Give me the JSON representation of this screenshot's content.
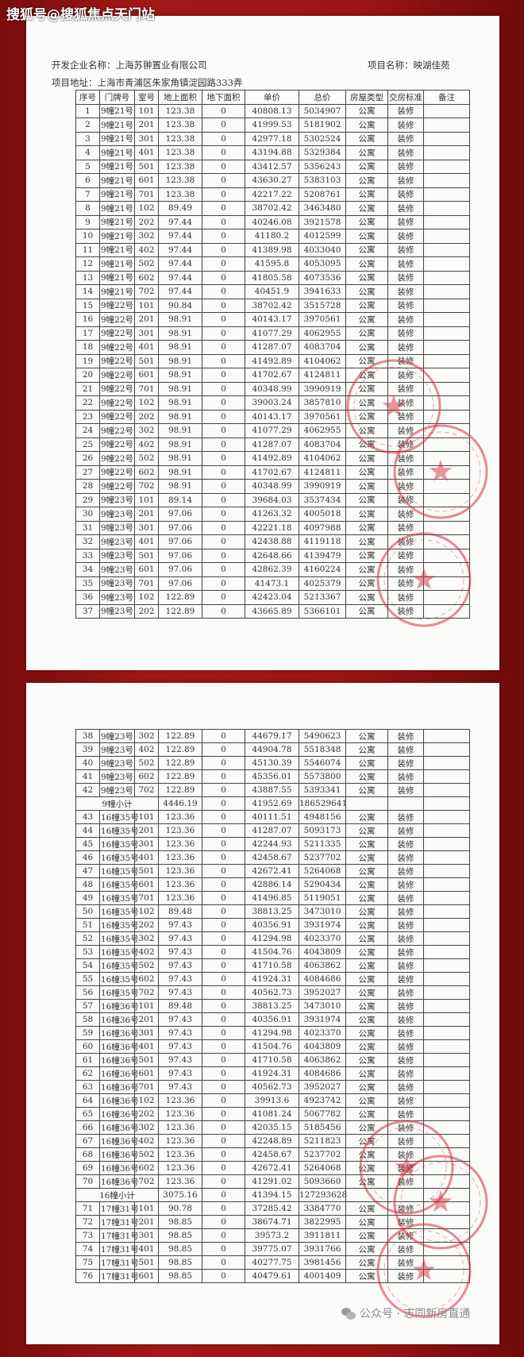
{
  "watermark_top": "搜狐号@搜狐焦点天门站",
  "watermark_bottom": "公众号 · 志同新房直通",
  "header": {
    "developer_label": "开发企业名称：",
    "developer": "上海苏翀置业有限公司",
    "project_label": "项目名称：",
    "project": "映湖佳苑",
    "address_label": "项目地址：",
    "address": "上海市青浦区朱家角镇淀园路333弄"
  },
  "columns": [
    "序号",
    "门牌号",
    "室号",
    "地上面积",
    "地下面积",
    "单价",
    "总价",
    "房屋类型",
    "交房标准",
    "备注"
  ],
  "stamp_color": "#d2303c",
  "page1_rows": [
    [
      "1",
      "9幢21号",
      "101",
      "123.38",
      "0",
      "40808.13",
      "5034907",
      "公寓",
      "装修",
      ""
    ],
    [
      "2",
      "9幢21号",
      "201",
      "123.38",
      "0",
      "41999.53",
      "5181902",
      "公寓",
      "装修",
      ""
    ],
    [
      "3",
      "9幢21号",
      "301",
      "123.38",
      "0",
      "42977.18",
      "5302524",
      "公寓",
      "装修",
      ""
    ],
    [
      "4",
      "9幢21号",
      "401",
      "123.38",
      "0",
      "43194.88",
      "5329384",
      "公寓",
      "装修",
      ""
    ],
    [
      "5",
      "9幢21号",
      "501",
      "123.38",
      "0",
      "43412.57",
      "5356243",
      "公寓",
      "装修",
      ""
    ],
    [
      "6",
      "9幢21号",
      "601",
      "123.38",
      "0",
      "43630.27",
      "5383103",
      "公寓",
      "装修",
      ""
    ],
    [
      "7",
      "9幢21号",
      "701",
      "123.38",
      "0",
      "42217.22",
      "5208761",
      "公寓",
      "装修",
      ""
    ],
    [
      "8",
      "9幢21号",
      "102",
      "89.49",
      "0",
      "38702.42",
      "3463480",
      "公寓",
      "装修",
      ""
    ],
    [
      "9",
      "9幢21号",
      "202",
      "97.44",
      "0",
      "40246.08",
      "3921578",
      "公寓",
      "装修",
      ""
    ],
    [
      "10",
      "9幢21号",
      "302",
      "97.44",
      "0",
      "41180.2",
      "4012599",
      "公寓",
      "装修",
      ""
    ],
    [
      "11",
      "9幢21号",
      "402",
      "97.44",
      "0",
      "41389.98",
      "4033040",
      "公寓",
      "装修",
      ""
    ],
    [
      "12",
      "9幢21号",
      "502",
      "97.44",
      "0",
      "41595.8",
      "4053095",
      "公寓",
      "装修",
      ""
    ],
    [
      "13",
      "9幢21号",
      "602",
      "97.44",
      "0",
      "41805.58",
      "4073536",
      "公寓",
      "装修",
      ""
    ],
    [
      "14",
      "9幢21号",
      "702",
      "97.44",
      "0",
      "40451.9",
      "3941633",
      "公寓",
      "装修",
      ""
    ],
    [
      "15",
      "9幢22号",
      "101",
      "90.84",
      "0",
      "38702.42",
      "3515728",
      "公寓",
      "装修",
      ""
    ],
    [
      "16",
      "9幢22号",
      "201",
      "98.91",
      "0",
      "40143.17",
      "3970561",
      "公寓",
      "装修",
      ""
    ],
    [
      "17",
      "9幢22号",
      "301",
      "98.91",
      "0",
      "41077.29",
      "4062955",
      "公寓",
      "装修",
      ""
    ],
    [
      "18",
      "9幢22号",
      "401",
      "98.91",
      "0",
      "41287.07",
      "4083704",
      "公寓",
      "装修",
      ""
    ],
    [
      "19",
      "9幢22号",
      "501",
      "98.91",
      "0",
      "41492.89",
      "4104062",
      "公寓",
      "装修",
      ""
    ],
    [
      "20",
      "9幢22号",
      "601",
      "98.91",
      "0",
      "41702.67",
      "4124811",
      "公寓",
      "装修",
      ""
    ],
    [
      "21",
      "9幢22号",
      "701",
      "98.91",
      "0",
      "40348.99",
      "3990919",
      "公寓",
      "装修",
      ""
    ],
    [
      "22",
      "9幢22号",
      "102",
      "98.91",
      "0",
      "39003.24",
      "3857810",
      "公寓",
      "装修",
      ""
    ],
    [
      "23",
      "9幢22号",
      "202",
      "98.91",
      "0",
      "40143.17",
      "3970561",
      "公寓",
      "装修",
      ""
    ],
    [
      "24",
      "9幢22号",
      "302",
      "98.91",
      "0",
      "41077.29",
      "4062955",
      "公寓",
      "装修",
      ""
    ],
    [
      "25",
      "9幢22号",
      "402",
      "98.91",
      "0",
      "41287.07",
      "4083704",
      "公寓",
      "装修",
      ""
    ],
    [
      "26",
      "9幢22号",
      "502",
      "98.91",
      "0",
      "41492.89",
      "4104062",
      "公寓",
      "装修",
      ""
    ],
    [
      "27",
      "9幢22号",
      "602",
      "98.91",
      "0",
      "41702.67",
      "4124811",
      "公寓",
      "装修",
      ""
    ],
    [
      "28",
      "9幢22号",
      "702",
      "98.91",
      "0",
      "40348.99",
      "3990919",
      "公寓",
      "装修",
      ""
    ],
    [
      "29",
      "9幢23号",
      "101",
      "89.14",
      "0",
      "39684.03",
      "3537434",
      "公寓",
      "装修",
      ""
    ],
    [
      "30",
      "9幢23号",
      "201",
      "97.06",
      "0",
      "41263.32",
      "4005018",
      "公寓",
      "装修",
      ""
    ],
    [
      "31",
      "9幢23号",
      "301",
      "97.06",
      "0",
      "42221.18",
      "4097988",
      "公寓",
      "装修",
      ""
    ],
    [
      "32",
      "9幢23号",
      "401",
      "97.06",
      "0",
      "42438.88",
      "4119118",
      "公寓",
      "装修",
      ""
    ],
    [
      "33",
      "9幢23号",
      "501",
      "97.06",
      "0",
      "42648.66",
      "4139479",
      "公寓",
      "装修",
      ""
    ],
    [
      "34",
      "9幢23号",
      "601",
      "97.06",
      "0",
      "42862.39",
      "4160224",
      "公寓",
      "装修",
      ""
    ],
    [
      "35",
      "9幢23号",
      "701",
      "97.06",
      "0",
      "41473.1",
      "4025379",
      "公寓",
      "装修",
      ""
    ],
    [
      "36",
      "9幢23号",
      "102",
      "122.89",
      "0",
      "42423.04",
      "5213367",
      "公寓",
      "装修",
      ""
    ],
    [
      "37",
      "9幢23号",
      "202",
      "122.89",
      "0",
      "43665.89",
      "5366101",
      "公寓",
      "装修",
      ""
    ]
  ],
  "page2_rows": [
    [
      "38",
      "9幢23号",
      "302",
      "122.89",
      "0",
      "44679.17",
      "5490623",
      "公寓",
      "装修",
      ""
    ],
    [
      "39",
      "9幢23号",
      "402",
      "122.89",
      "0",
      "44904.78",
      "5518348",
      "公寓",
      "装修",
      ""
    ],
    [
      "40",
      "9幢23号",
      "502",
      "122.89",
      "0",
      "45130.39",
      "5546074",
      "公寓",
      "装修",
      ""
    ],
    [
      "41",
      "9幢23号",
      "602",
      "122.89",
      "0",
      "45356.01",
      "5573800",
      "公寓",
      "装修",
      ""
    ],
    [
      "42",
      "9幢23号",
      "702",
      "122.89",
      "0",
      "43887.55",
      "5393341",
      "公寓",
      "装修",
      ""
    ],
    [
      "9幢小计",
      "4446.19",
      "0",
      "41952.69",
      "186529641"
    ],
    [
      "43",
      "16幢35号",
      "101",
      "123.36",
      "0",
      "40111.51",
      "4948156",
      "公寓",
      "装修",
      ""
    ],
    [
      "44",
      "16幢35号",
      "201",
      "123.36",
      "0",
      "41287.07",
      "5093173",
      "公寓",
      "装修",
      ""
    ],
    [
      "45",
      "16幢35号",
      "301",
      "123.36",
      "0",
      "42244.93",
      "5211335",
      "公寓",
      "装修",
      ""
    ],
    [
      "46",
      "16幢35号",
      "401",
      "123.36",
      "0",
      "42458.67",
      "5237702",
      "公寓",
      "装修",
      ""
    ],
    [
      "47",
      "16幢35号",
      "501",
      "123.36",
      "0",
      "42672.41",
      "5264068",
      "公寓",
      "装修",
      ""
    ],
    [
      "48",
      "16幢35号",
      "601",
      "123.36",
      "0",
      "42886.14",
      "5290434",
      "公寓",
      "装修",
      ""
    ],
    [
      "49",
      "16幢35号",
      "701",
      "123.36",
      "0",
      "41496.85",
      "5119051",
      "公寓",
      "装修",
      ""
    ],
    [
      "50",
      "16幢35号",
      "102",
      "89.48",
      "0",
      "38813.25",
      "3473010",
      "公寓",
      "装修",
      ""
    ],
    [
      "51",
      "16幢35号",
      "202",
      "97.43",
      "0",
      "40356.91",
      "3931974",
      "公寓",
      "装修",
      ""
    ],
    [
      "52",
      "16幢35号",
      "302",
      "97.43",
      "0",
      "41294.98",
      "4023370",
      "公寓",
      "装修",
      ""
    ],
    [
      "53",
      "16幢35号",
      "402",
      "97.43",
      "0",
      "41504.76",
      "4043809",
      "公寓",
      "装修",
      ""
    ],
    [
      "54",
      "16幢35号",
      "502",
      "97.43",
      "0",
      "41710.58",
      "4063862",
      "公寓",
      "装修",
      ""
    ],
    [
      "55",
      "16幢35号",
      "602",
      "97.43",
      "0",
      "41924.31",
      "4084686",
      "公寓",
      "装修",
      ""
    ],
    [
      "56",
      "16幢35号",
      "702",
      "97.43",
      "0",
      "40562.73",
      "3952027",
      "公寓",
      "装修",
      ""
    ],
    [
      "57",
      "16幢36号",
      "101",
      "89.48",
      "0",
      "38813.25",
      "3473010",
      "公寓",
      "装修",
      ""
    ],
    [
      "58",
      "16幢36号",
      "201",
      "97.43",
      "0",
      "40356.91",
      "3931974",
      "公寓",
      "装修",
      ""
    ],
    [
      "59",
      "16幢36号",
      "301",
      "97.43",
      "0",
      "41294.98",
      "4023370",
      "公寓",
      "装修",
      ""
    ],
    [
      "60",
      "16幢36号",
      "401",
      "97.43",
      "0",
      "41504.76",
      "4043809",
      "公寓",
      "装修",
      ""
    ],
    [
      "61",
      "16幢36号",
      "501",
      "97.43",
      "0",
      "41710.58",
      "4063862",
      "公寓",
      "装修",
      ""
    ],
    [
      "62",
      "16幢36号",
      "601",
      "97.43",
      "0",
      "41924.31",
      "4084686",
      "公寓",
      "装修",
      ""
    ],
    [
      "63",
      "16幢36号",
      "701",
      "97.43",
      "0",
      "40562.73",
      "3952027",
      "公寓",
      "装修",
      ""
    ],
    [
      "64",
      "16幢36号",
      "102",
      "123.36",
      "0",
      "39913.6",
      "4923742",
      "公寓",
      "装修",
      ""
    ],
    [
      "65",
      "16幢36号",
      "202",
      "123.36",
      "0",
      "41081.24",
      "5067782",
      "公寓",
      "装修",
      ""
    ],
    [
      "66",
      "16幢36号",
      "302",
      "123.36",
      "0",
      "42035.15",
      "5185456",
      "公寓",
      "装修",
      ""
    ],
    [
      "67",
      "16幢36号",
      "402",
      "123.36",
      "0",
      "42248.89",
      "5211823",
      "公寓",
      "装修",
      ""
    ],
    [
      "68",
      "16幢36号",
      "502",
      "123.36",
      "0",
      "42458.67",
      "5237702",
      "公寓",
      "装修",
      ""
    ],
    [
      "69",
      "16幢36号",
      "602",
      "123.36",
      "0",
      "42672.41",
      "5264068",
      "公寓",
      "装修",
      ""
    ],
    [
      "70",
      "16幢36号",
      "702",
      "123.36",
      "0",
      "41291.02",
      "5093660",
      "公寓",
      "装修",
      ""
    ],
    [
      "16幢小计",
      "3075.16",
      "0",
      "41394.15",
      "127293628"
    ],
    [
      "71",
      "17幢31号",
      "101",
      "90.78",
      "0",
      "37285.42",
      "3384770",
      "公寓",
      "装修",
      ""
    ],
    [
      "72",
      "17幢31号",
      "201",
      "98.85",
      "0",
      "38674.71",
      "3822995",
      "公寓",
      "装修",
      ""
    ],
    [
      "73",
      "17幢31号",
      "301",
      "98.85",
      "0",
      "39573.2",
      "3911811",
      "公寓",
      "装修",
      ""
    ],
    [
      "74",
      "17幢31号",
      "401",
      "98.85",
      "0",
      "39775.07",
      "3931766",
      "公寓",
      "装修",
      ""
    ],
    [
      "75",
      "17幢31号",
      "501",
      "98.85",
      "0",
      "40277.75",
      "3981456",
      "公寓",
      "装修",
      ""
    ],
    [
      "76",
      "17幢31号",
      "601",
      "98.85",
      "0",
      "40479.61",
      "4001409",
      "公寓",
      "装修",
      ""
    ]
  ]
}
